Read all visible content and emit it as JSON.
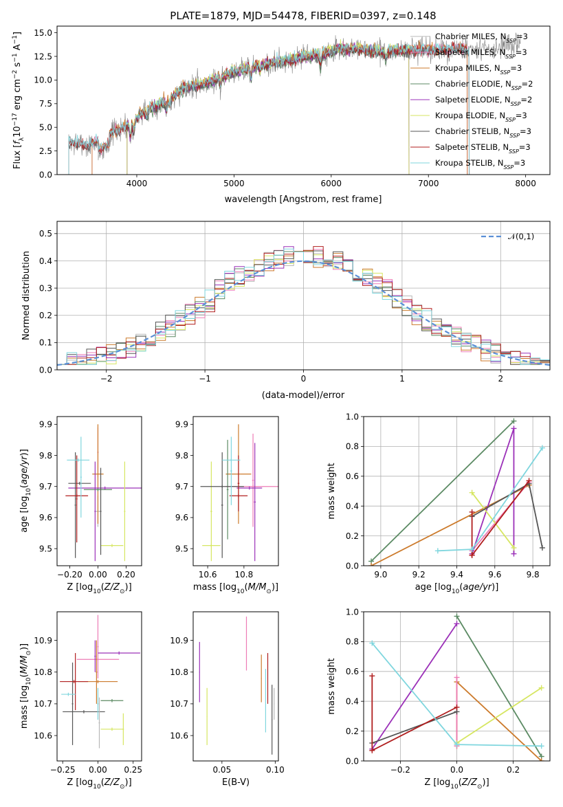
{
  "colors": {
    "Chabrier MILES": "#b8b8b8",
    "Salpeter MILES": "#ed7bb5",
    "Kroupa MILES": "#cc7a2b",
    "Chabrier ELODIE": "#5b8a63",
    "Salpeter ELODIE": "#9b30b8",
    "Kroupa ELODIE": "#d6e661",
    "Chabrier STELIB": "#555555",
    "Salpeter STELIB": "#b01e1e",
    "Kroupa STELIB": "#7fd6de"
  },
  "chart_data": [
    {
      "id": "spectrum",
      "type": "line",
      "title": "PLATE=1879, MJD=54478, FIBERID=0397, z=0.148",
      "xlabel": "wavelength [Angstrom, rest frame]",
      "ylabel": "Flux [f_λ 10^-17 erg cm^-2 s^-1 A^-1]",
      "xlim": [
        3180,
        8250
      ],
      "ylim": [
        0,
        15.7
      ],
      "xticks": [
        4000,
        5000,
        6000,
        7000,
        8000
      ],
      "yticks": [
        0.0,
        2.5,
        5.0,
        7.5,
        10.0,
        12.5,
        15.0
      ],
      "legend": "upper-right",
      "legend_entries": [
        "Chabrier MILES, N_SSP=3",
        "Salpeter MILES, N_SSP=3",
        "Kroupa MILES, N_SSP=3",
        "Chabrier ELODIE, N_SSP=2",
        "Salpeter ELODIE, N_SSP=2",
        "Kroupa ELODIE, N_SSP=3",
        "Chabrier STELIB, N_SSP=3",
        "Salpeter STELIB, N_SSP=3",
        "Kroupa STELIB, N_SSP=3"
      ],
      "observed_trend": {
        "x": [
          3300,
          3500,
          3700,
          3900,
          4100,
          4300,
          4500,
          4700,
          4900,
          5100,
          5300,
          5500,
          5700,
          5900,
          6100,
          6300,
          6500,
          6700,
          6900,
          7100,
          7300,
          7500,
          7700,
          7900
        ],
        "y": [
          3.5,
          3.0,
          4.2,
          5.1,
          6.8,
          7.8,
          9.2,
          9.6,
          10.5,
          11.2,
          11.6,
          12.0,
          12.4,
          12.8,
          13.3,
          13.2,
          13.0,
          13.1,
          13.2,
          13.1,
          13.3,
          13.1,
          13.4,
          13.6
        ]
      },
      "model_range_angstrom": {
        "Chabrier MILES": [
          3540,
          7400
        ],
        "Salpeter MILES": [
          3540,
          7400
        ],
        "Kroupa MILES": [
          3540,
          7400
        ],
        "Chabrier ELODIE": [
          3900,
          6800
        ],
        "Salpeter ELODIE": [
          3900,
          6800
        ],
        "Kroupa ELODIE": [
          3900,
          6800
        ],
        "Chabrier STELIB": [
          3300,
          7420
        ],
        "Salpeter STELIB": [
          3300,
          7420
        ],
        "Kroupa STELIB": [
          3300,
          7420
        ]
      }
    },
    {
      "id": "residuals",
      "type": "histogram",
      "xlabel": "(data-model)/error",
      "ylabel": "Normed distribution",
      "xlim": [
        -2.5,
        2.5
      ],
      "ylim": [
        0,
        0.545
      ],
      "xticks": [
        -2,
        -1,
        0,
        1,
        2
      ],
      "yticks": [
        0.0,
        0.1,
        0.2,
        0.3,
        0.4,
        0.5
      ],
      "grid": true,
      "legend": "upper-right",
      "reference_label": "𝒩(0,1)",
      "bin_width": 0.1,
      "series_offsets": {
        "Chabrier MILES": 0.006,
        "Salpeter MILES": 0.012,
        "Kroupa MILES": -0.008,
        "Chabrier ELODIE": 0.02,
        "Salpeter ELODIE": 0.01,
        "Kroupa ELODIE": 0.004,
        "Chabrier STELIB": -0.004,
        "Salpeter STELIB": 0.014,
        "Kroupa STELIB": -0.012
      }
    },
    {
      "id": "age-vs-z",
      "type": "errorbar",
      "xlabel": "Z [log10(Z/Z⊙)]",
      "ylabel": "age [log10(age/yr)]",
      "xlim": [
        -0.29,
        0.31
      ],
      "ylim": [
        9.445,
        9.925
      ],
      "xticks": [
        -0.2,
        0.0,
        0.2
      ],
      "yticks": [
        9.5,
        9.6,
        9.7,
        9.8,
        9.9
      ],
      "points": [
        {
          "series": "Chabrier MILES",
          "x": 0.0,
          "y": 9.62,
          "xerr": 0.02,
          "yerr": 0.05
        },
        {
          "series": "Salpeter MILES",
          "x": 0.0,
          "y": 9.81,
          "xerr": 0.005,
          "yerr": 0.08
        },
        {
          "series": "Kroupa MILES",
          "x": 0.0,
          "y": 9.74,
          "xerr": 0.04,
          "yerr": 0.16
        },
        {
          "series": "Chabrier ELODIE",
          "x": 0.0,
          "y": 9.69,
          "xerr": 0.1,
          "yerr": 0.005
        },
        {
          "series": "Salpeter ELODIE",
          "x": 0.05,
          "y": 9.695,
          "xerr": 0.26,
          "yerr": 0.005
        },
        {
          "series": "Salpeter ELODIE",
          "x": -0.02,
          "y": 9.62,
          "xerr": 0.005,
          "yerr": 0.16
        },
        {
          "series": "Kroupa ELODIE",
          "x": 0.1,
          "y": 9.51,
          "xerr": 0.08,
          "yerr": 0.005
        },
        {
          "series": "Kroupa ELODIE",
          "x": 0.19,
          "y": 9.62,
          "xerr": 0.005,
          "yerr": 0.16
        },
        {
          "series": "Chabrier STELIB",
          "x": -0.13,
          "y": 9.71,
          "xerr": 0.08,
          "yerr": 0.005
        },
        {
          "series": "Chabrier STELIB",
          "x": 0.02,
          "y": 9.62,
          "xerr": 0.005,
          "yerr": 0.14
        },
        {
          "series": "Chabrier STELIB",
          "x": -0.16,
          "y": 9.64,
          "xerr": 0.005,
          "yerr": 0.17
        },
        {
          "series": "Salpeter STELIB",
          "x": -0.15,
          "y": 9.67,
          "xerr": 0.08,
          "yerr": 0.005
        },
        {
          "series": "Salpeter STELIB",
          "x": -0.15,
          "y": 9.66,
          "xerr": 0.005,
          "yerr": 0.14
        },
        {
          "series": "Kroupa STELIB",
          "x": -0.14,
          "y": 9.785,
          "xerr": 0.08,
          "yerr": 0.005
        },
        {
          "series": "Kroupa STELIB",
          "x": -0.12,
          "y": 9.73,
          "xerr": 0.005,
          "yerr": 0.13
        }
      ]
    },
    {
      "id": "age-vs-mass",
      "type": "errorbar",
      "xlabel": "mass [log10(M/M⊙)]",
      "ylabel": "",
      "xlim": [
        10.52,
        10.99
      ],
      "ylim": [
        9.445,
        9.925
      ],
      "xticks": [
        10.6,
        10.8
      ],
      "yticks": [
        9.5,
        9.6,
        9.7,
        9.8,
        9.9
      ],
      "points": [
        {
          "series": "Salpeter MILES",
          "x": 10.85,
          "y": 9.72,
          "xerr": 0.005,
          "yerr": 0.15
        },
        {
          "series": "Salpeter MILES",
          "x": 10.85,
          "y": 9.7,
          "xerr": 0.15,
          "yerr": 0.005
        },
        {
          "series": "Kroupa MILES",
          "x": 10.77,
          "y": 9.74,
          "xerr": 0.07,
          "yerr": 0.16
        },
        {
          "series": "Chabrier ELODIE",
          "x": 10.71,
          "y": 9.69,
          "xerr": 0.005,
          "yerr": 0.16
        },
        {
          "series": "Salpeter ELODIE",
          "x": 10.86,
          "y": 9.65,
          "xerr": 0.005,
          "yerr": 0.19
        },
        {
          "series": "Salpeter ELODIE",
          "x": 10.83,
          "y": 9.695,
          "xerr": 0.07,
          "yerr": 0.005
        },
        {
          "series": "Kroupa ELODIE",
          "x": 10.62,
          "y": 9.51,
          "xerr": 0.05,
          "yerr": 0.005
        },
        {
          "series": "Kroupa ELODIE",
          "x": 10.62,
          "y": 9.62,
          "xerr": 0.005,
          "yerr": 0.16
        },
        {
          "series": "Chabrier STELIB",
          "x": 10.68,
          "y": 9.7,
          "xerr": 0.12,
          "yerr": 0.005
        },
        {
          "series": "Chabrier STELIB",
          "x": 10.68,
          "y": 9.64,
          "xerr": 0.005,
          "yerr": 0.17
        },
        {
          "series": "Salpeter STELIB",
          "x": 10.77,
          "y": 9.67,
          "xerr": 0.05,
          "yerr": 0.005
        },
        {
          "series": "Salpeter STELIB",
          "x": 10.77,
          "y": 9.71,
          "xerr": 0.005,
          "yerr": 0.09
        },
        {
          "series": "Kroupa STELIB",
          "x": 10.73,
          "y": 9.785,
          "xerr": 0.05,
          "yerr": 0.005
        },
        {
          "series": "Kroupa STELIB",
          "x": 10.73,
          "y": 9.75,
          "xerr": 0.005,
          "yerr": 0.11
        }
      ]
    },
    {
      "id": "weight-vs-age",
      "type": "line",
      "xlabel": "age [log10(age/yr)]",
      "ylabel": "mass weight",
      "xlim": [
        8.91,
        9.89
      ],
      "ylim": [
        0,
        1
      ],
      "xticks": [
        9.0,
        9.2,
        9.4,
        9.6,
        9.8
      ],
      "yticks": [
        0.0,
        0.2,
        0.4,
        0.6,
        0.8,
        1.0
      ],
      "grid": true,
      "series": [
        {
          "series": "Chabrier ELODIE",
          "x": [
            8.95,
            9.7
          ],
          "y": [
            0.03,
            0.97
          ]
        },
        {
          "series": "Kroupa MILES",
          "x": [
            8.95,
            9.78
          ],
          "y": [
            0.0,
            0.54
          ]
        },
        {
          "series": "Salpeter MILES",
          "x": [
            9.48,
            9.78
          ],
          "y": [
            0.1,
            0.56
          ]
        },
        {
          "series": "Salpeter ELODIE",
          "x": [
            9.48,
            9.7,
            9.7
          ],
          "y": [
            0.08,
            0.92,
            0.08
          ]
        },
        {
          "series": "Kroupa ELODIE",
          "x": [
            9.48,
            9.7
          ],
          "y": [
            0.49,
            0.12
          ]
        },
        {
          "series": "Chabrier STELIB",
          "x": [
            9.48,
            9.78,
            9.85
          ],
          "y": [
            0.33,
            0.55,
            0.12
          ]
        },
        {
          "series": "Salpeter STELIB",
          "x": [
            9.48,
            9.48,
            9.78,
            9.48
          ],
          "y": [
            0.36,
            0.07,
            0.57,
            0.07
          ]
        },
        {
          "series": "Kroupa STELIB",
          "x": [
            9.3,
            9.48,
            9.85
          ],
          "y": [
            0.1,
            0.11,
            0.79
          ]
        }
      ]
    },
    {
      "id": "mass-vs-z",
      "type": "errorbar",
      "xlabel": "Z [log10(Z/Z⊙)]",
      "ylabel": "mass [log10(M/M⊙)]",
      "xlim": [
        -0.29,
        0.31
      ],
      "ylim": [
        10.52,
        10.99
      ],
      "xticks": [
        -0.25,
        0.0,
        0.25
      ],
      "yticks": [
        10.6,
        10.7,
        10.8,
        10.9
      ],
      "points": [
        {
          "series": "Salpeter MILES",
          "x": 0.0,
          "y": 10.88,
          "xerr": 0.005,
          "yerr": 0.1
        },
        {
          "series": "Salpeter MILES",
          "x": 0.0,
          "y": 10.84,
          "xerr": 0.15,
          "yerr": 0.005
        },
        {
          "series": "Kroupa MILES",
          "x": 0.0,
          "y": 10.77,
          "xerr": 0.14,
          "yerr": 0.005
        },
        {
          "series": "Kroupa MILES",
          "x": -0.01,
          "y": 10.8,
          "xerr": 0.005,
          "yerr": 0.1
        },
        {
          "series": "Chabrier ELODIE",
          "x": 0.1,
          "y": 10.71,
          "xerr": 0.08,
          "yerr": 0.005
        },
        {
          "series": "Salpeter ELODIE",
          "x": 0.15,
          "y": 10.86,
          "xerr": 0.15,
          "yerr": 0.005
        },
        {
          "series": "Salpeter ELODIE",
          "x": -0.02,
          "y": 10.85,
          "xerr": 0.005,
          "yerr": 0.05
        },
        {
          "series": "Kroupa ELODIE",
          "x": 0.1,
          "y": 10.62,
          "xerr": 0.08,
          "yerr": 0.005
        },
        {
          "series": "Kroupa ELODIE",
          "x": 0.18,
          "y": 10.62,
          "xerr": 0.005,
          "yerr": 0.05
        },
        {
          "series": "Chabrier STELIB",
          "x": -0.1,
          "y": 10.675,
          "xerr": 0.15,
          "yerr": 0.005
        },
        {
          "series": "Chabrier STELIB",
          "x": -0.18,
          "y": 10.7,
          "xerr": 0.005,
          "yerr": 0.13
        },
        {
          "series": "Salpeter STELIB",
          "x": -0.17,
          "y": 10.77,
          "xerr": 0.1,
          "yerr": 0.005
        },
        {
          "series": "Salpeter STELIB",
          "x": -0.16,
          "y": 10.77,
          "xerr": 0.005,
          "yerr": 0.09
        },
        {
          "series": "Kroupa STELIB",
          "x": -0.21,
          "y": 10.73,
          "xerr": 0.05,
          "yerr": 0.005
        },
        {
          "series": "Kroupa STELIB",
          "x": 0.0,
          "y": 10.7,
          "xerr": 0.005,
          "yerr": 0.05
        },
        {
          "series": "Chabrier MILES",
          "x": 0.01,
          "y": 10.64,
          "xerr": 0.005,
          "yerr": 0.08
        }
      ]
    },
    {
      "id": "mass-vs-ebv",
      "type": "errorbar",
      "xlabel": "E(B-V)",
      "ylabel": "",
      "xlim": [
        0.023,
        0.103
      ],
      "ylim": [
        10.52,
        10.99
      ],
      "xticks": [
        0.05,
        0.1
      ],
      "yticks": [
        10.6,
        10.7,
        10.8,
        10.9
      ],
      "points": [
        {
          "series": "Salpeter ELODIE",
          "x": 0.029,
          "y": 10.8,
          "xerr": 0.0003,
          "yerr": 0.095
        },
        {
          "series": "Kroupa ELODIE",
          "x": 0.036,
          "y": 10.66,
          "xerr": 0.0003,
          "yerr": 0.09
        },
        {
          "series": "Salpeter MILES",
          "x": 0.073,
          "y": 10.89,
          "xerr": 0.0003,
          "yerr": 0.085
        },
        {
          "series": "Kroupa MILES",
          "x": 0.087,
          "y": 10.78,
          "xerr": 0.0003,
          "yerr": 0.075
        },
        {
          "series": "Kroupa STELIB",
          "x": 0.091,
          "y": 10.71,
          "xerr": 0.0003,
          "yerr": 0.1
        },
        {
          "series": "Salpeter STELIB",
          "x": 0.093,
          "y": 10.78,
          "xerr": 0.0003,
          "yerr": 0.08
        },
        {
          "series": "Chabrier STELIB",
          "x": 0.097,
          "y": 10.65,
          "xerr": 0.0003,
          "yerr": 0.11
        },
        {
          "series": "Chabrier MILES",
          "x": 0.099,
          "y": 10.7,
          "xerr": 0.0003,
          "yerr": 0.05
        }
      ]
    },
    {
      "id": "weight-vs-z",
      "type": "line",
      "xlabel": "Z [log10(Z/Z⊙)]",
      "ylabel": "mass weight",
      "xlim": [
        -0.33,
        0.33
      ],
      "ylim": [
        0,
        1
      ],
      "xticks": [
        -0.2,
        0.0,
        0.2
      ],
      "yticks": [
        0.0,
        0.2,
        0.4,
        0.6,
        0.8,
        1.0
      ],
      "grid": true,
      "series": [
        {
          "series": "Chabrier ELODIE",
          "x": [
            0.0,
            0.3
          ],
          "y": [
            0.97,
            0.03
          ]
        },
        {
          "series": "Kroupa MILES",
          "x": [
            0.0,
            0.0,
            0.3
          ],
          "y": [
            0.1,
            0.53,
            0.0
          ]
        },
        {
          "series": "Salpeter MILES",
          "x": [
            0.0,
            0.0
          ],
          "y": [
            0.1,
            0.56
          ]
        },
        {
          "series": "Salpeter ELODIE",
          "x": [
            -0.3,
            0.0
          ],
          "y": [
            0.08,
            0.92
          ]
        },
        {
          "series": "Kroupa ELODIE",
          "x": [
            0.0,
            0.3
          ],
          "y": [
            0.12,
            0.49
          ]
        },
        {
          "series": "Chabrier STELIB",
          "x": [
            -0.3,
            0.0
          ],
          "y": [
            0.12,
            0.33
          ]
        },
        {
          "series": "Salpeter STELIB",
          "x": [
            -0.3,
            -0.3,
            0.0
          ],
          "y": [
            0.57,
            0.07,
            0.36
          ]
        },
        {
          "series": "Kroupa STELIB",
          "x": [
            -0.3,
            0.0,
            0.3
          ],
          "y": [
            0.79,
            0.11,
            0.1
          ]
        }
      ]
    }
  ]
}
